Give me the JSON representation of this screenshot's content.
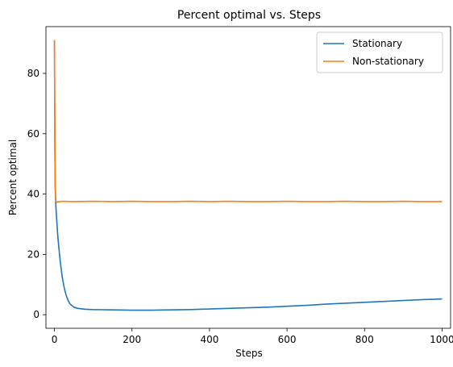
{
  "chart_data": {
    "type": "line",
    "title": "Percent optimal vs. Steps",
    "xlabel": "Steps",
    "ylabel": "Percent optimal",
    "xlim": [
      -22,
      1022
    ],
    "ylim": [
      -4.5,
      95.5
    ],
    "xticks": [
      0,
      200,
      400,
      600,
      800,
      1000
    ],
    "yticks": [
      0,
      20,
      40,
      60,
      80
    ],
    "xtick_labels": [
      "0",
      "200",
      "400",
      "600",
      "800",
      "1000"
    ],
    "ytick_labels": [
      "0",
      "20",
      "40",
      "60",
      "80"
    ],
    "grid": false,
    "legend": "top-right",
    "series": [
      {
        "name": "Stationary",
        "color": "#1f77b4",
        "x": [
          0,
          1,
          2,
          3,
          4,
          6,
          8,
          10,
          15,
          20,
          25,
          30,
          35,
          40,
          50,
          60,
          80,
          100,
          150,
          200,
          250,
          300,
          350,
          400,
          450,
          500,
          550,
          600,
          650,
          700,
          750,
          800,
          850,
          900,
          950,
          1000
        ],
        "values": [
          91,
          55,
          42,
          38,
          35,
          31,
          27,
          24,
          17.5,
          12.5,
          9,
          6.5,
          4.8,
          3.6,
          2.5,
          2.1,
          1.8,
          1.7,
          1.6,
          1.5,
          1.5,
          1.6,
          1.7,
          1.9,
          2.1,
          2.3,
          2.5,
          2.8,
          3.1,
          3.5,
          3.8,
          4.1,
          4.4,
          4.7,
          5.0,
          5.2
        ]
      },
      {
        "name": "Non-stationary",
        "color": "#ff7f0e",
        "x": [
          0,
          1,
          2,
          3,
          4,
          6,
          8,
          10,
          20,
          50,
          100,
          150,
          200,
          250,
          300,
          350,
          400,
          450,
          500,
          550,
          600,
          650,
          700,
          750,
          800,
          850,
          900,
          950,
          1000
        ],
        "values": [
          91,
          60,
          45,
          39,
          37.5,
          37.2,
          37.5,
          37.4,
          37.6,
          37.5,
          37.6,
          37.5,
          37.6,
          37.5,
          37.5,
          37.6,
          37.5,
          37.6,
          37.5,
          37.5,
          37.6,
          37.5,
          37.5,
          37.6,
          37.5,
          37.5,
          37.6,
          37.5,
          37.5
        ]
      }
    ]
  }
}
